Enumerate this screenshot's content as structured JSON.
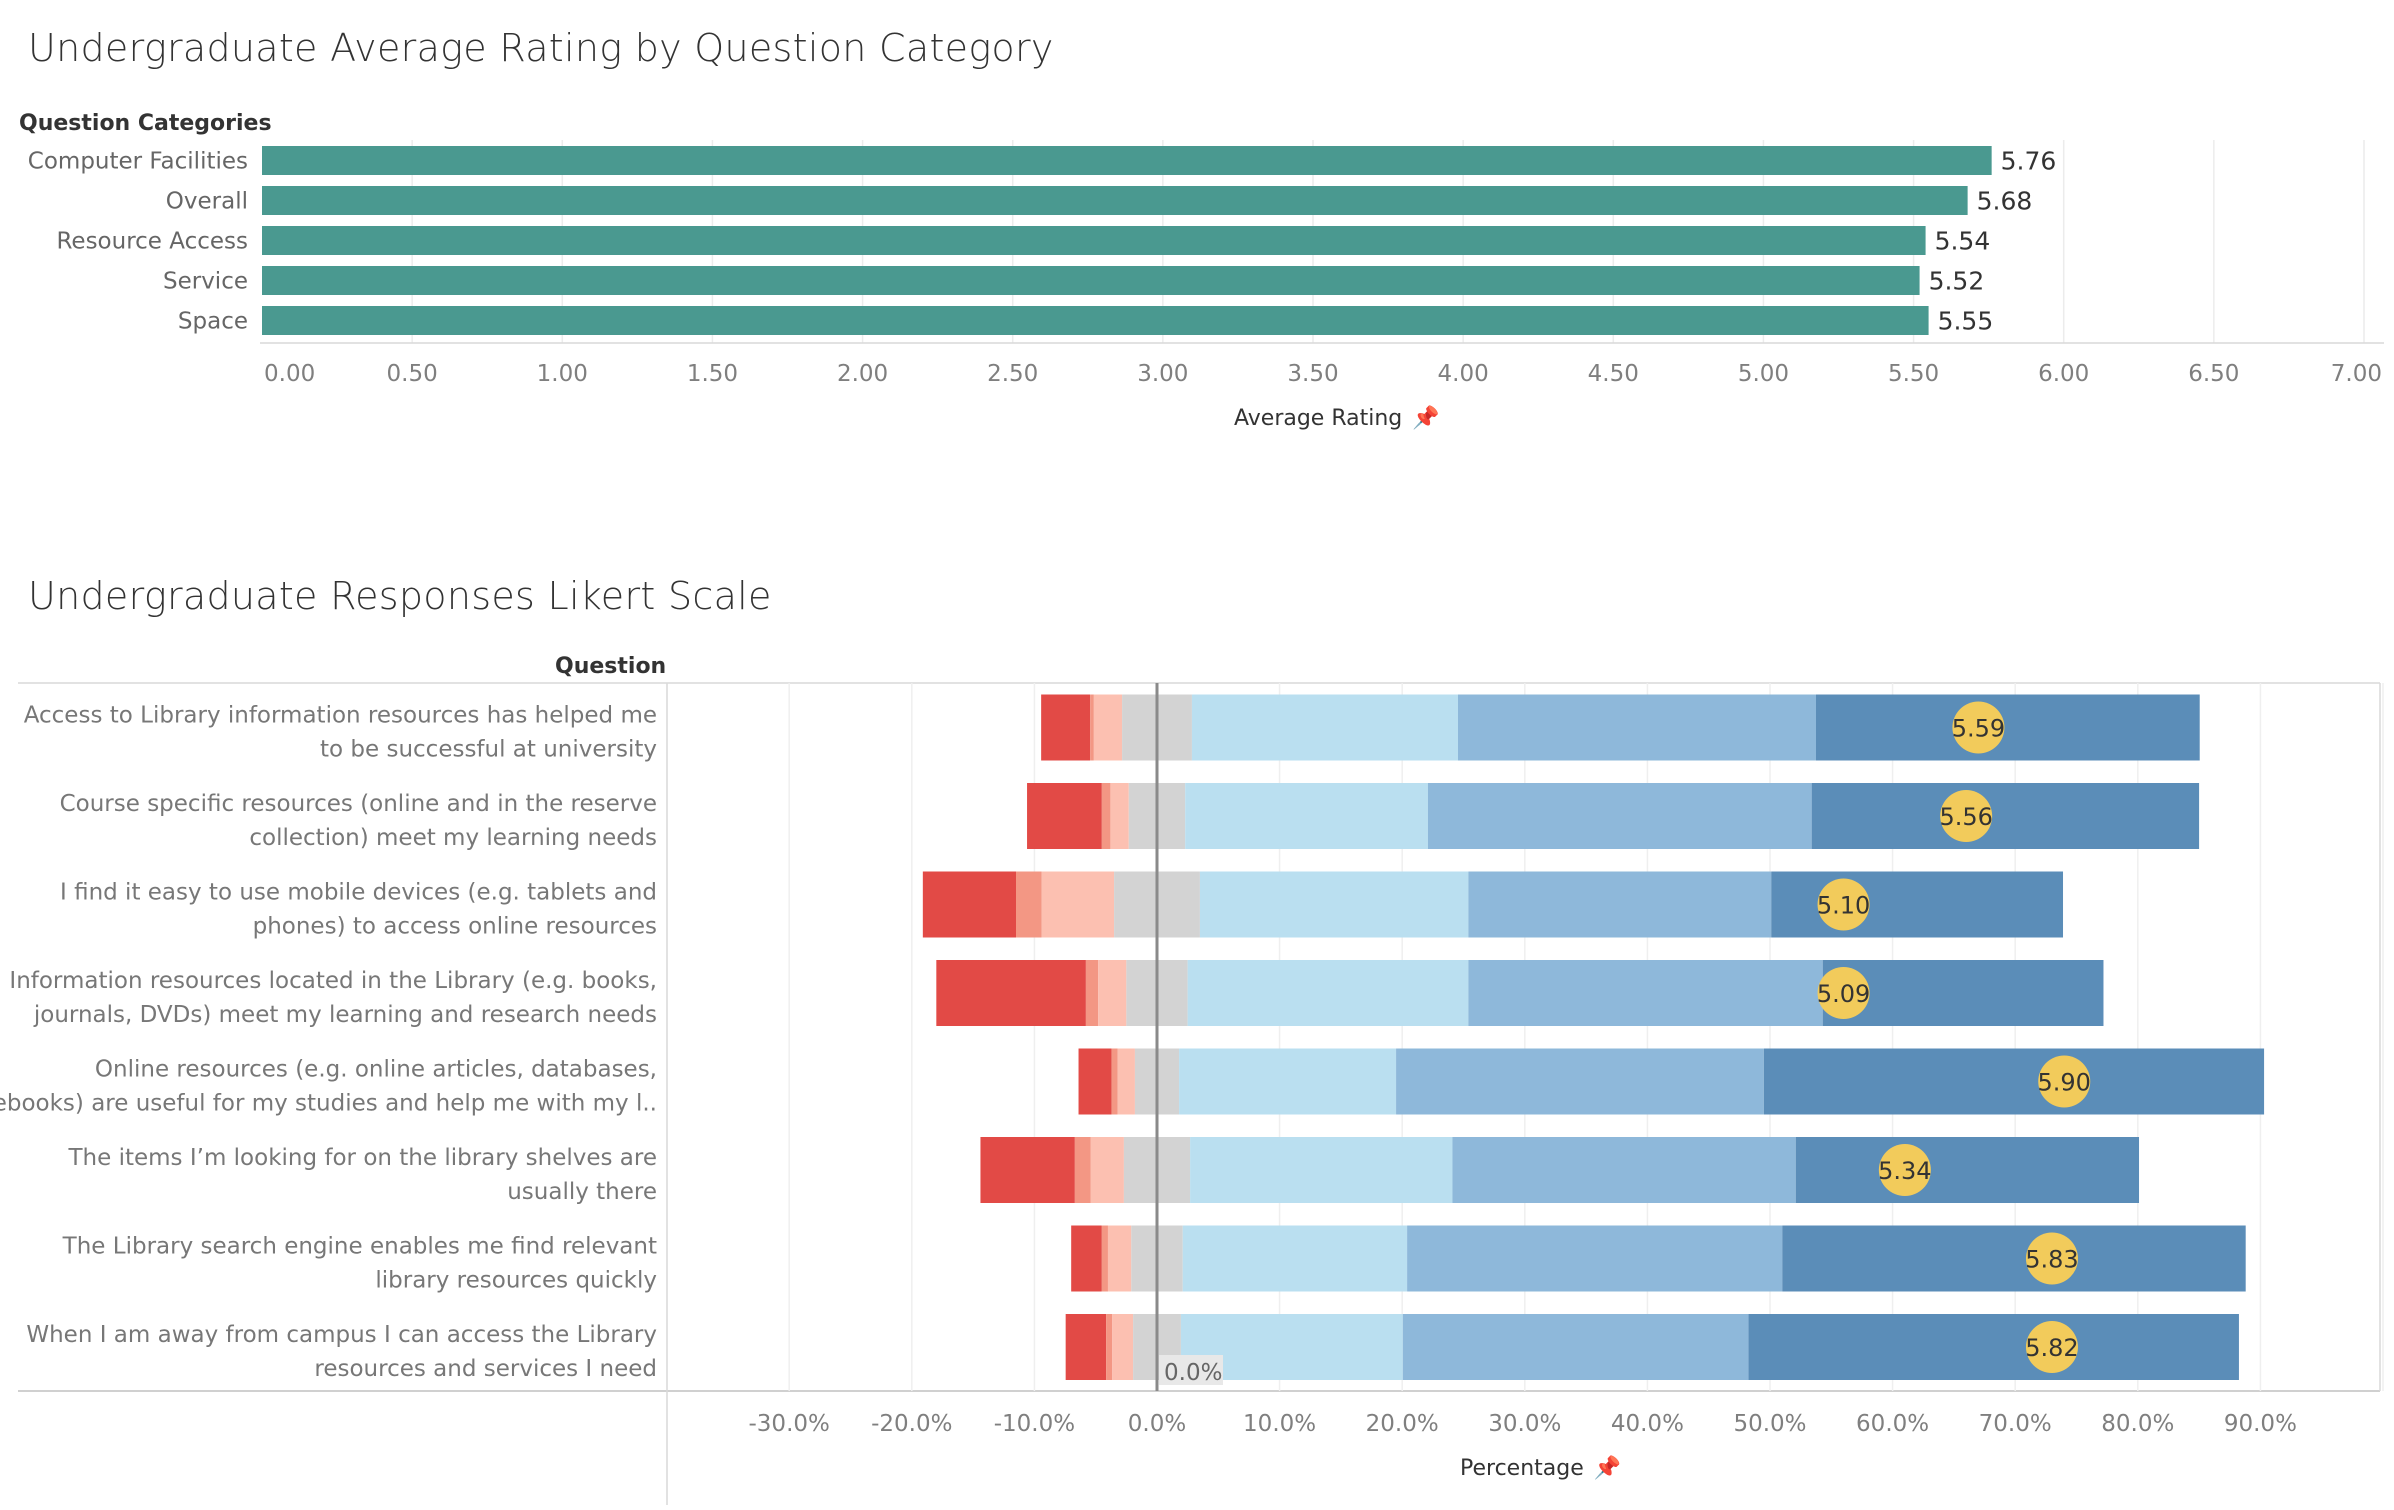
{
  "top": {
    "title": "Undergraduate Average Rating by Question Category",
    "row_header": "Question Categories",
    "axis_title": "Average Rating",
    "bar_color": "#4a9990"
  },
  "bottom": {
    "title": "Undergraduate Responses Likert Scale",
    "row_header": "Question",
    "axis_title": "Percentage",
    "zero_label": "0.0%",
    "colors": [
      "#e24a46",
      "#f39784",
      "#fcc0b1",
      "#d3d3d3",
      "#badff0",
      "#8eb8da",
      "#5b8db8"
    ],
    "avg_marker_color": "#f2cb5b"
  },
  "pin_icon": "pin-icon",
  "chart_data": [
    {
      "type": "bar",
      "orientation": "horizontal",
      "title": "Undergraduate Average Rating by Question Category",
      "ylabel": "Question Categories",
      "xlabel": "Average Rating",
      "categories": [
        "Computer Facilities",
        "Overall",
        "Resource Access",
        "Service",
        "Space"
      ],
      "values": [
        5.76,
        5.68,
        5.54,
        5.52,
        5.55
      ],
      "value_labels": [
        "5.76",
        "5.68",
        "5.54",
        "5.52",
        "5.55"
      ],
      "xlim": [
        0,
        7
      ],
      "ticks": [
        0,
        0.5,
        1,
        1.5,
        2,
        2.5,
        3,
        3.5,
        4,
        4.5,
        5,
        5.5,
        6,
        6.5,
        7
      ],
      "tick_labels": [
        "0.00",
        "0.50",
        "1.00",
        "1.50",
        "2.00",
        "2.50",
        "3.00",
        "3.50",
        "4.00",
        "4.50",
        "5.00",
        "5.50",
        "6.00",
        "6.50",
        "7.00"
      ],
      "grid": true
    },
    {
      "type": "bar",
      "orientation": "horizontal",
      "stacked": true,
      "diverging": true,
      "title": "Undergraduate Responses Likert Scale",
      "ylabel": "Question",
      "xlabel": "Percentage",
      "xlim": [
        -40,
        97
      ],
      "ticks": [
        -30,
        -20,
        -10,
        0,
        10,
        20,
        30,
        40,
        50,
        60,
        70,
        80,
        90
      ],
      "tick_labels": [
        "-30.0%",
        "-20.0%",
        "-10.0%",
        "0.0%",
        "10.0%",
        "20.0%",
        "30.0%",
        "40.0%",
        "50.0%",
        "60.0%",
        "70.0%",
        "80.0%",
        "90.0%"
      ],
      "grid": true,
      "categories": [
        [
          "Access to Library information resources has helped me",
          "to be successful at university"
        ],
        [
          "Course specific resources (online and in the reserve",
          "collection) meet my learning needs"
        ],
        [
          "I find it easy to use mobile devices (e.g. tablets and",
          "phones) to access online resources"
        ],
        [
          "Information resources located in the Library (e.g. books,",
          "journals, DVDs) meet my learning and research needs"
        ],
        [
          "Online resources (e.g. online articles, databases,",
          "ebooks) are useful for my studies and help me with my l.."
        ],
        [
          "The items I’m looking for on the library shelves are",
          "usually there"
        ],
        [
          "The Library search engine enables me find relevant",
          "library resources quickly"
        ],
        [
          "When I am away from campus I can access the Library",
          "resources and services I need"
        ]
      ],
      "series_values": [
        [
          4.0,
          0.3,
          2.3,
          5.7,
          21.7,
          29.2,
          31.3
        ],
        [
          6.1,
          0.7,
          1.5,
          4.6,
          19.8,
          31.3,
          31.6
        ],
        [
          7.6,
          2.1,
          5.9,
          7.0,
          21.9,
          24.7,
          23.8
        ],
        [
          12.2,
          1.0,
          2.3,
          5.0,
          22.9,
          28.9,
          22.9
        ],
        [
          2.7,
          0.5,
          1.4,
          3.6,
          17.7,
          30.0,
          40.8
        ],
        [
          7.7,
          1.3,
          2.7,
          5.4,
          21.4,
          28.0,
          28.0
        ],
        [
          2.5,
          0.5,
          1.9,
          4.2,
          18.3,
          30.6,
          37.8
        ],
        [
          3.3,
          0.5,
          1.7,
          3.9,
          18.1,
          28.2,
          40.0
        ]
      ],
      "averages": [
        5.59,
        5.56,
        5.1,
        5.09,
        5.9,
        5.34,
        5.83,
        5.82
      ],
      "average_labels": [
        "5.59",
        "5.56",
        "5.10",
        "5.09",
        "5.90",
        "5.34",
        "5.83",
        "5.82"
      ],
      "average_marker_x": [
        67,
        66,
        56,
        56,
        74,
        61,
        73,
        73
      ]
    }
  ]
}
